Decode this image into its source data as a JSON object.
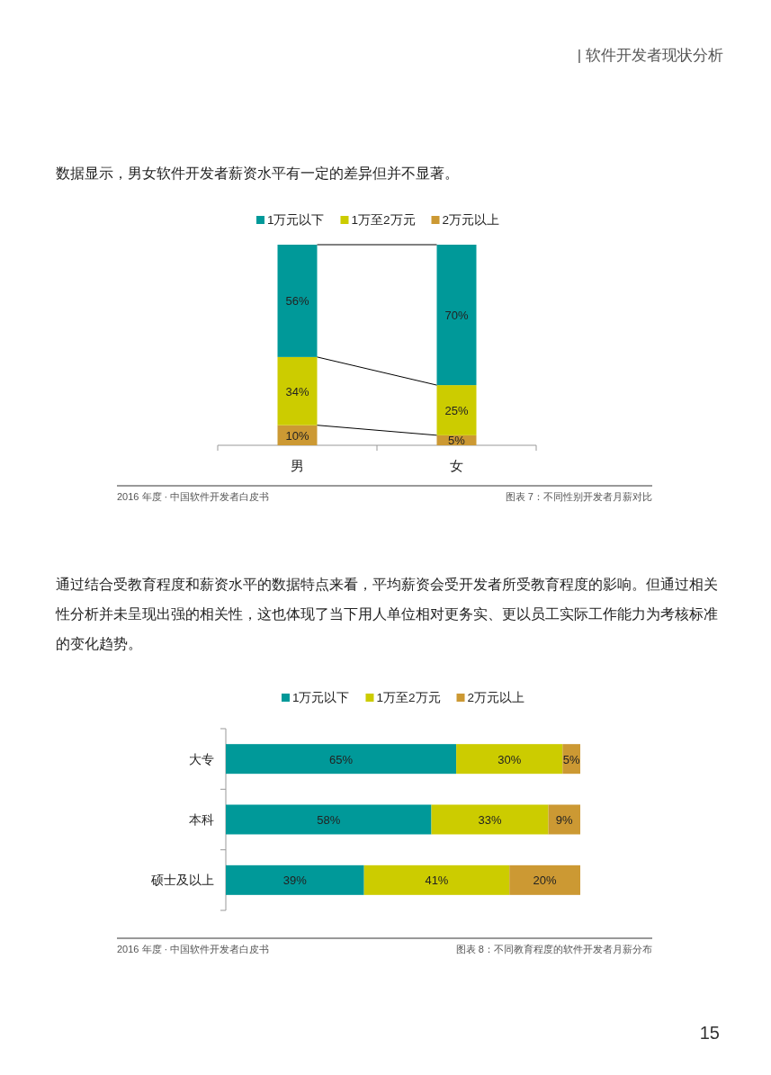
{
  "chart_data": [
    {
      "type": "bar",
      "stacked": true,
      "subtitle": "数据显示，男女软件开发者薪资水平有一定的差异但并不显著。",
      "categories": [
        "男",
        "女"
      ],
      "legend": "top",
      "series": [
        {
          "name": "2万元以上",
          "color": "#cc9933",
          "values": [
            10,
            5
          ],
          "value_labels": [
            "10%",
            "5%"
          ]
        },
        {
          "name": "1万至2万元",
          "color": "#cccc00",
          "values": [
            34,
            25
          ],
          "value_labels": [
            "34%",
            "25%"
          ]
        },
        {
          "name": "1万元以下",
          "color": "#009999",
          "values": [
            56,
            70
          ],
          "value_labels": [
            "56%",
            "70%"
          ]
        }
      ],
      "annotations": [
        "| 软件开发者现状分析",
        "2016 年度 · 中国软件开发者白皮书",
        "图表 7：不同性别开发者月薪对比"
      ]
    },
    {
      "type": "bar",
      "stacked": true,
      "orientation": "horizontal",
      "subtitle": "通过结合受教育程度和薪资水平的数据特点来看，平均薪资会受开发者所受教育程度的影响。但通过相关性分析并未呈现出强的相关性，这也体现了当下用人单位相对更务实、更以员工实际工作能力为考核标准的变化趋势。",
      "categories": [
        "大专",
        "本科",
        "硕士及以上"
      ],
      "legend": "top",
      "series": [
        {
          "name": "1万元以下",
          "color": "#009999",
          "values": [
            65,
            58,
            39
          ],
          "value_labels": [
            "65%",
            "58%",
            "39%"
          ]
        },
        {
          "name": "1万至2万元",
          "color": "#cccc00",
          "values": [
            30,
            33,
            41
          ],
          "value_labels": [
            "30%",
            "33%",
            "41%"
          ]
        },
        {
          "name": "2万元以上",
          "color": "#cc9933",
          "values": [
            5,
            9,
            20
          ],
          "value_labels": [
            "5%",
            "9%",
            "20%"
          ]
        }
      ],
      "annotations": [
        "2016 年度 · 中国软件开发者白皮书",
        "图表 8：不同教育程度的软件开发者月薪分布",
        "15"
      ]
    }
  ]
}
